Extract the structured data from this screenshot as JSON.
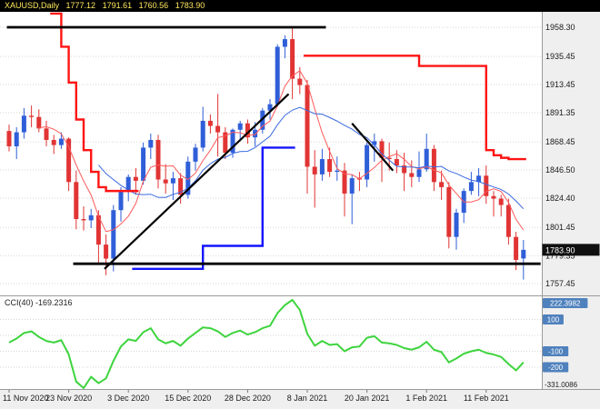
{
  "header": {
    "symbol": "XAUUSD,Daily",
    "open": "1777.12",
    "high": "1791.61",
    "low": "1760.56",
    "close": "1783.90"
  },
  "price_axis": {
    "labels": [
      "1958.30",
      "1935.45",
      "1913.45",
      "1891.35",
      "1868.45",
      "1846.50",
      "1824.40",
      "1801.45",
      "1779.35",
      "1757.45"
    ],
    "current_price": "1783.90"
  },
  "time_axis": {
    "labels": [
      {
        "text": "11 Nov 2020",
        "i": 0
      },
      {
        "text": "23 Nov 2020",
        "i": 8
      },
      {
        "text": "3 Dec 2020",
        "i": 16
      },
      {
        "text": "15 Dec 2020",
        "i": 24
      },
      {
        "text": "28 Dec 2020",
        "i": 32
      },
      {
        "text": "8 Jan 2021",
        "i": 40
      },
      {
        "text": "20 Jan 2021",
        "i": 48
      },
      {
        "text": "1 Feb 2021",
        "i": 56
      },
      {
        "text": "11 Feb 2021",
        "i": 64
      }
    ]
  },
  "indicator": {
    "label": "CCI(40) -169.2316",
    "name": "CCI",
    "period": 40,
    "current_value": -169.2316,
    "scale_max_label": "222.3982",
    "scale_min_label": "-331.0086",
    "level_badges": [
      {
        "text": "222.3982",
        "value": 222.3982
      },
      {
        "text": "100",
        "value": 100
      },
      {
        "text": "-100",
        "value": -100
      },
      {
        "text": "-200",
        "value": -200
      }
    ]
  },
  "colors": {
    "candle_up": "#2f5ed8",
    "candle_down": "#e13434",
    "trend_up": "#1414ff",
    "trend_down": "#ff1414",
    "ma_fast": "#ff5a5a",
    "ma_slow": "#3a6ae0",
    "cci_line": "#3ed43e",
    "chip_bg": "#4f81bd",
    "badge_bg": "#101010",
    "trendline": "#000000",
    "grid": "#d6d6d6",
    "axis_bg": "#efefef",
    "axis_text": "#1a1a1a",
    "divider": "#9a9a9a",
    "header_text": "#ffe95e"
  },
  "chart_data": {
    "type": "candlestick",
    "symbol": "XAUUSD",
    "timeframe": "Daily",
    "candles": {
      "open": [
        1877,
        1865,
        1876,
        1889,
        1888,
        1879,
        1870,
        1866,
        1871,
        1837,
        1808,
        1807,
        1811,
        1788,
        1777,
        1815,
        1830,
        1841,
        1838,
        1864,
        1870,
        1839,
        1836,
        1840,
        1827,
        1853,
        1864,
        1885,
        1881,
        1876,
        1860,
        1878,
        1883,
        1872,
        1878,
        1893,
        1898,
        1943,
        1949,
        1918,
        1913,
        1849,
        1843,
        1855,
        1845,
        1846,
        1828,
        1840,
        1839,
        1866,
        1869,
        1856,
        1855,
        1850,
        1844,
        1841,
        1847,
        1863,
        1837,
        1833,
        1794,
        1813,
        1830,
        1837,
        1842,
        1826,
        1824,
        1819,
        1794,
        1777.12
      ],
      "high": [
        1882,
        1880,
        1895,
        1897,
        1894,
        1885,
        1874,
        1876,
        1872,
        1846,
        1818,
        1816,
        1815,
        1796,
        1819,
        1833,
        1843,
        1848,
        1868,
        1875,
        1874,
        1851,
        1845,
        1844,
        1857,
        1867,
        1896,
        1890,
        1906,
        1880,
        1879,
        1885,
        1886,
        1884,
        1895,
        1902,
        1945,
        1952,
        1959,
        1927,
        1917,
        1862,
        1863,
        1864,
        1857,
        1852,
        1843,
        1845,
        1868,
        1875,
        1871,
        1868,
        1862,
        1860,
        1854,
        1861,
        1875,
        1866,
        1846,
        1837,
        1816,
        1832,
        1845,
        1848,
        1850,
        1830,
        1827,
        1824,
        1798,
        1791.61
      ],
      "low": [
        1861,
        1855,
        1871,
        1880,
        1876,
        1865,
        1859,
        1863,
        1830,
        1800,
        1799,
        1801,
        1774,
        1764,
        1767,
        1806,
        1822,
        1827,
        1835,
        1855,
        1832,
        1828,
        1823,
        1820,
        1824,
        1846,
        1861,
        1875,
        1857,
        1855,
        1856,
        1870,
        1867,
        1865,
        1875,
        1886,
        1896,
        1934,
        1902,
        1906,
        1828,
        1817,
        1838,
        1841,
        1838,
        1810,
        1804,
        1830,
        1833,
        1853,
        1837,
        1846,
        1844,
        1830,
        1833,
        1837,
        1845,
        1830,
        1823,
        1785,
        1784,
        1805,
        1827,
        1826,
        1820,
        1810,
        1810,
        1788,
        1768,
        1760.56
      ],
      "close": [
        1865,
        1876,
        1889,
        1888,
        1879,
        1870,
        1866,
        1871,
        1837,
        1808,
        1807,
        1811,
        1788,
        1777,
        1815,
        1830,
        1841,
        1838,
        1864,
        1870,
        1839,
        1836,
        1840,
        1827,
        1853,
        1864,
        1885,
        1881,
        1876,
        1860,
        1878,
        1883,
        1872,
        1878,
        1893,
        1898,
        1943,
        1949,
        1918,
        1913,
        1849,
        1843,
        1855,
        1845,
        1846,
        1828,
        1840,
        1839,
        1866,
        1869,
        1856,
        1855,
        1850,
        1844,
        1841,
        1847,
        1863,
        1837,
        1833,
        1794,
        1813,
        1830,
        1837,
        1842,
        1826,
        1824,
        1819,
        1794,
        1776,
        1783.9
      ]
    },
    "overlays": {
      "ma_fast_period": 5,
      "ma_slow_period": 13,
      "trend_stop_segments": [
        {
          "direction": "down",
          "start_index": 6,
          "values": [
            1969,
            1943,
            1915,
            1886,
            1862,
            1845,
            1833,
            1830,
            1830,
            1830,
            1830,
            1830
          ]
        },
        {
          "direction": "up",
          "start_index": 17,
          "values": [
            1769,
            1769,
            1769,
            1769,
            1769,
            1769,
            1769,
            1769,
            1769,
            1787,
            1787,
            1787,
            1787,
            1787,
            1787,
            1787,
            1787,
            1864,
            1864,
            1864,
            1864,
            1864
          ]
        },
        {
          "direction": "down",
          "start_index": 40,
          "values": [
            1936,
            1936,
            1936,
            1936,
            1936,
            1936,
            1936,
            1936,
            1936,
            1936,
            1936,
            1936,
            1936,
            1936,
            1936,
            1928,
            1928,
            1928,
            1928,
            1928,
            1928,
            1928,
            1928,
            1928,
            1862,
            1858,
            1856,
            1855,
            1855,
            1855
          ]
        }
      ],
      "trendlines": [
        {
          "name": "resistance-hline",
          "i1": -0.3,
          "price1": 1958.3,
          "i2": 42.5,
          "price2": 1958.3
        },
        {
          "name": "support-hline",
          "i1": 8.6,
          "price1": 1773,
          "i2": 71.3,
          "price2": 1773
        },
        {
          "name": "uptrend-line",
          "i1": 12.8,
          "price1": 1769,
          "i2": 37.5,
          "price2": 1906
        },
        {
          "name": "downtrend-line",
          "i1": 46,
          "price1": 1883,
          "i2": 51.5,
          "price2": 1846
        }
      ]
    },
    "indicator_panel": {
      "type": "line",
      "name": "CCI(40)",
      "scale_max": 222.3982,
      "scale_min": -331.0086,
      "levels": [
        100,
        0,
        -100,
        -200
      ],
      "values": [
        -45,
        -20,
        15,
        25,
        -10,
        -35,
        -45,
        -30,
        -120,
        -290,
        -331.0086,
        -260,
        -300,
        -270,
        -160,
        -70,
        -25,
        -35,
        20,
        45,
        -25,
        -50,
        -35,
        -65,
        -20,
        15,
        50,
        45,
        25,
        -10,
        15,
        30,
        5,
        20,
        45,
        60,
        140,
        190,
        222.3982,
        160,
        10,
        -65,
        -35,
        -60,
        -55,
        -100,
        -75,
        -70,
        -15,
        -5,
        -45,
        -50,
        -60,
        -80,
        -90,
        -75,
        -40,
        -90,
        -105,
        -170,
        -145,
        -115,
        -100,
        -90,
        -110,
        -120,
        -135,
        -180,
        -220,
        -169.2316
      ]
    }
  }
}
